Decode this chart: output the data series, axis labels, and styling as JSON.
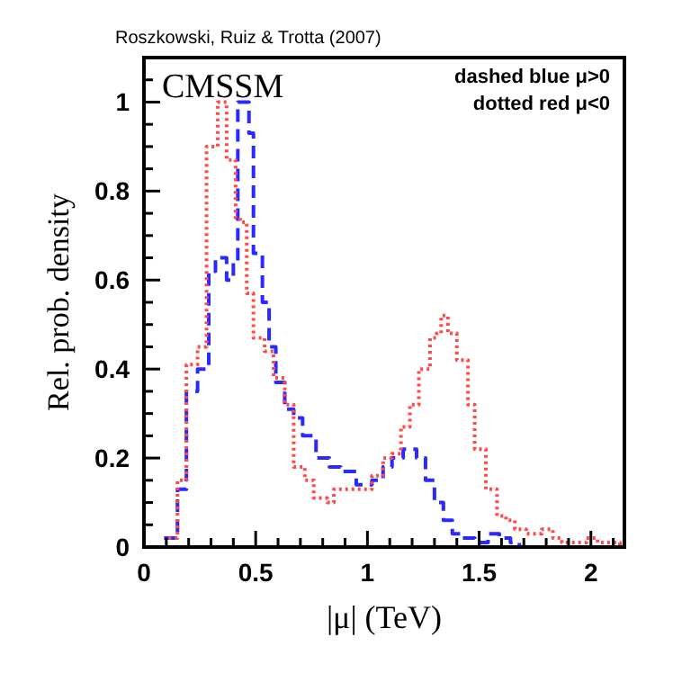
{
  "chart_data": {
    "type": "step",
    "xlabel": "|μ| (TeV)",
    "ylabel": "Rel. prob. density",
    "annotations": [
      "Roszkowski, Ruiz & Trotta (2007)",
      "CMSSM",
      "dashed blue μ>0",
      "dotted red μ<0"
    ],
    "xlim": [
      0,
      2.15
    ],
    "ylim": [
      0,
      1.1
    ],
    "xticks": [
      0,
      {
        "value": 0.1,
        "label": null
      },
      {
        "value": 0.2,
        "label": null
      },
      {
        "value": 0.3,
        "label": null
      },
      {
        "value": 0.4,
        "label": null
      },
      0.5,
      {
        "value": 0.6,
        "label": null
      },
      {
        "value": 0.7,
        "label": null
      },
      {
        "value": 0.8,
        "label": null
      },
      {
        "value": 0.9,
        "label": null
      },
      1,
      {
        "value": 1.1,
        "label": null
      },
      {
        "value": 1.2,
        "label": null
      },
      {
        "value": 1.3,
        "label": null
      },
      {
        "value": 1.4,
        "label": null
      },
      1.5,
      {
        "value": 1.6,
        "label": null
      },
      {
        "value": 1.7,
        "label": null
      },
      {
        "value": 1.8,
        "label": null
      },
      {
        "value": 1.9,
        "label": null
      },
      2,
      {
        "value": 2.1,
        "label": null
      }
    ],
    "yticks": [
      0,
      {
        "value": 0.05,
        "label": null
      },
      {
        "value": 0.1,
        "label": null
      },
      {
        "value": 0.15,
        "label": null
      },
      0.2,
      {
        "value": 0.25,
        "label": null
      },
      {
        "value": 0.3,
        "label": null
      },
      {
        "value": 0.35,
        "label": null
      },
      0.4,
      {
        "value": 0.45,
        "label": null
      },
      {
        "value": 0.5,
        "label": null
      },
      {
        "value": 0.55,
        "label": null
      },
      0.6,
      {
        "value": 0.65,
        "label": null
      },
      {
        "value": 0.7,
        "label": null
      },
      {
        "value": 0.75,
        "label": null
      },
      0.8,
      {
        "value": 0.85,
        "label": null
      },
      {
        "value": 0.9,
        "label": null
      },
      {
        "value": 0.95,
        "label": null
      },
      1,
      {
        "value": 1.05,
        "label": null
      }
    ],
    "grid": false,
    "series": [
      {
        "color": "#2a2aff",
        "line_style": "dashed",
        "x": [
          0.09,
          0.15,
          0.19,
          0.24,
          0.29,
          0.32,
          0.37,
          0.4,
          0.42,
          0.47,
          0.49,
          0.53,
          0.56,
          0.59,
          0.63,
          0.67,
          0.71,
          0.77,
          0.83,
          0.88,
          0.95,
          1.02,
          1.07,
          1.11,
          1.16,
          1.22,
          1.26,
          1.3,
          1.34,
          1.38,
          1.42,
          1.48,
          1.54,
          1.59,
          1.64,
          1.68
        ],
        "values": [
          0.02,
          0.13,
          0.35,
          0.4,
          0.62,
          0.65,
          0.6,
          0.64,
          1.0,
          0.93,
          0.66,
          0.55,
          0.45,
          0.37,
          0.31,
          0.29,
          0.25,
          0.2,
          0.18,
          0.17,
          0.14,
          0.15,
          0.18,
          0.2,
          0.22,
          0.2,
          0.15,
          0.1,
          0.06,
          0.03,
          0.02,
          0.01,
          0.03,
          0.02,
          0.01,
          0
        ]
      },
      {
        "color": "#ff4a4a",
        "line_style": "dotted",
        "x": [
          0.11,
          0.15,
          0.19,
          0.24,
          0.28,
          0.33,
          0.37,
          0.41,
          0.43,
          0.46,
          0.49,
          0.54,
          0.58,
          0.63,
          0.67,
          0.72,
          0.76,
          0.82,
          0.85,
          0.94,
          1.02,
          1.07,
          1.11,
          1.15,
          1.19,
          1.23,
          1.28,
          1.31,
          1.33,
          1.36,
          1.4,
          1.45,
          1.48,
          1.53,
          1.58,
          1.62,
          1.66,
          1.71,
          1.78,
          1.83,
          1.87,
          1.98,
          2.03,
          2.13
        ],
        "values": [
          0.02,
          0.15,
          0.41,
          0.45,
          0.9,
          1.0,
          0.87,
          0.74,
          0.73,
          0.57,
          0.47,
          0.44,
          0.38,
          0.32,
          0.18,
          0.15,
          0.11,
          0.1,
          0.13,
          0.13,
          0.16,
          0.2,
          0.21,
          0.27,
          0.32,
          0.4,
          0.47,
          0.48,
          0.52,
          0.48,
          0.42,
          0.32,
          0.22,
          0.13,
          0.07,
          0.06,
          0.04,
          0.03,
          0.04,
          0.02,
          0.01,
          0.02,
          0.01,
          0
        ]
      }
    ]
  }
}
